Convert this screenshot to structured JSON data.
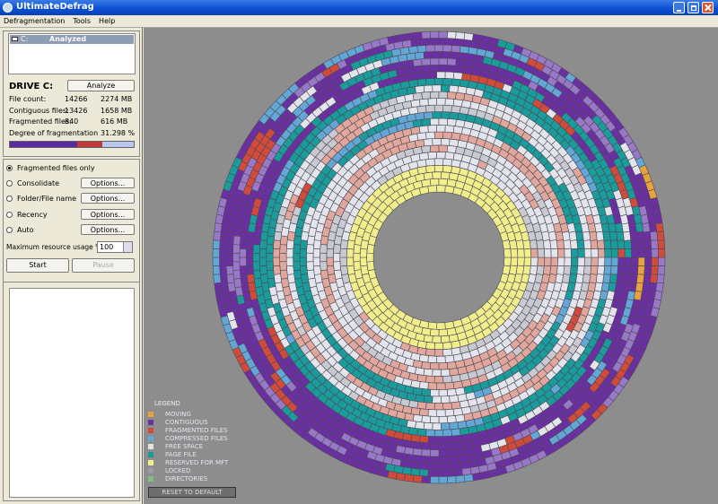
{
  "window": {
    "title": "UltimateDefrag"
  },
  "menu": [
    "Defragmentation",
    "Tools",
    "Help"
  ],
  "drive_list": {
    "drive": "C:",
    "status": "Analyzed"
  },
  "drive_panel": {
    "heading": "DRIVE C:",
    "analyze_button": "Analyze",
    "stats": [
      [
        "File count:",
        "14266",
        "2274 MB"
      ],
      [
        "Contiguous files:",
        "13426",
        "1658 MB"
      ],
      [
        "Fragmented files:",
        "840",
        "616 MB"
      ],
      [
        "Degree of fragmentation",
        "31.298 %"
      ]
    ]
  },
  "options": {
    "modes": [
      {
        "label": "Fragmented files only",
        "selected": true
      },
      {
        "label": "Consolidate",
        "selected": false,
        "button": "Options..."
      },
      {
        "label": "Folder/File name",
        "selected": false,
        "button": "Options..."
      },
      {
        "label": "Recency",
        "selected": false,
        "button": "Options..."
      },
      {
        "label": "Auto",
        "selected": false,
        "button": "Options..."
      }
    ],
    "resource_label": "Maximum resource usage %",
    "resource_value": "100",
    "start": "Start",
    "pause": "Pause"
  },
  "legend": {
    "title": "LEGEND",
    "items": [
      {
        "label": "MOVING",
        "color": "#e8a33c"
      },
      {
        "label": "CONTIGUOUS",
        "color": "#6b2fa3"
      },
      {
        "label": "FRAGMENTED FILES",
        "color": "#d24b3a"
      },
      {
        "label": "COMPRESSED FILES",
        "color": "#63a7d6"
      },
      {
        "label": "FREE SPACE",
        "color": "#e4e4ec"
      },
      {
        "label": "PAGE FILE",
        "color": "#1b9c9c"
      },
      {
        "label": "RESERVED FOR MFT",
        "color": "#f3ee8c"
      },
      {
        "label": "LOCKED",
        "color": "#9a9aa8"
      },
      {
        "label": "DIRECTORIES",
        "color": "#7fbf7f"
      }
    ],
    "reset_button": "RESET TO DEFAULT"
  }
}
